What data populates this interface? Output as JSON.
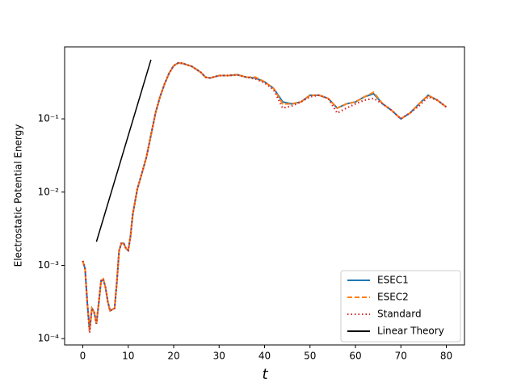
{
  "chart_data": {
    "type": "line",
    "xlabel": "t",
    "ylabel": "Electrostatic Potential Energy",
    "xlim": [
      -4,
      84
    ],
    "xticks": [
      0,
      10,
      20,
      30,
      40,
      50,
      60,
      70,
      80
    ],
    "ylim": [
      8.2e-05,
      0.96
    ],
    "log_y": true,
    "yticks": [
      {
        "value": 0.0001,
        "label": "10⁻⁴"
      },
      {
        "value": 0.001,
        "label": "10⁻³"
      },
      {
        "value": 0.01,
        "label": "10⁻²"
      },
      {
        "value": 0.1,
        "label": "10⁻¹"
      }
    ],
    "legend": "lower right",
    "series": [
      {
        "name": "ESEC1",
        "color": "#1f77b4",
        "style": "solid",
        "x": [
          0,
          0.5,
          1,
          1.5,
          2,
          2.5,
          3,
          3.5,
          4,
          4.5,
          5,
          5.5,
          6,
          7,
          7.5,
          8,
          8.5,
          9,
          9.5,
          10,
          10.5,
          11,
          12,
          13,
          14,
          15,
          16,
          17,
          18,
          19,
          20,
          21,
          22,
          24,
          26,
          27,
          28,
          30,
          32,
          34,
          36,
          38,
          40,
          42,
          44,
          46,
          48,
          50,
          52,
          54,
          56,
          58,
          60,
          62,
          64,
          66,
          68,
          70,
          72,
          74,
          76,
          78,
          80
        ],
        "values": [
          0.00115,
          0.0009,
          0.0003,
          0.00013,
          0.00026,
          0.00023,
          0.00016,
          0.0003,
          0.0006,
          0.00065,
          0.0005,
          0.00032,
          0.00024,
          0.00026,
          0.0006,
          0.0016,
          0.002,
          0.002,
          0.0017,
          0.0016,
          0.0025,
          0.005,
          0.011,
          0.018,
          0.03,
          0.06,
          0.12,
          0.2,
          0.3,
          0.42,
          0.53,
          0.58,
          0.57,
          0.52,
          0.43,
          0.37,
          0.36,
          0.39,
          0.39,
          0.4,
          0.37,
          0.36,
          0.32,
          0.26,
          0.17,
          0.16,
          0.17,
          0.21,
          0.21,
          0.19,
          0.14,
          0.16,
          0.17,
          0.2,
          0.22,
          0.16,
          0.13,
          0.1,
          0.12,
          0.16,
          0.21,
          0.18,
          0.145
        ]
      },
      {
        "name": "ESEC2",
        "color": "#ff7f0e",
        "style": "dashed",
        "x": [
          0,
          0.5,
          1,
          1.5,
          2,
          2.5,
          3,
          3.5,
          4,
          4.5,
          5,
          5.5,
          6,
          7,
          7.5,
          8,
          8.5,
          9,
          9.5,
          10,
          10.5,
          11,
          12,
          13,
          14,
          15,
          16,
          17,
          18,
          19,
          20,
          21,
          22,
          24,
          26,
          27,
          28,
          30,
          32,
          34,
          36,
          38,
          40,
          42,
          44,
          46,
          48,
          50,
          52,
          54,
          56,
          58,
          60,
          62,
          64,
          66,
          68,
          70,
          72,
          74,
          76,
          78,
          80
        ],
        "values": [
          0.00115,
          0.0009,
          0.0003,
          0.00013,
          0.00026,
          0.00023,
          0.00016,
          0.0003,
          0.0006,
          0.00065,
          0.0005,
          0.00032,
          0.00024,
          0.00026,
          0.0006,
          0.0016,
          0.002,
          0.002,
          0.0017,
          0.0016,
          0.0025,
          0.005,
          0.011,
          0.018,
          0.03,
          0.06,
          0.12,
          0.2,
          0.3,
          0.42,
          0.53,
          0.58,
          0.57,
          0.52,
          0.43,
          0.37,
          0.36,
          0.39,
          0.39,
          0.4,
          0.37,
          0.37,
          0.32,
          0.26,
          0.16,
          0.16,
          0.17,
          0.21,
          0.21,
          0.19,
          0.14,
          0.16,
          0.17,
          0.2,
          0.23,
          0.16,
          0.13,
          0.1,
          0.12,
          0.16,
          0.21,
          0.18,
          0.145
        ]
      },
      {
        "name": "Standard",
        "color": "#d62728",
        "style": "dotted",
        "x": [
          0,
          0.5,
          1,
          1.5,
          2,
          2.5,
          3,
          3.5,
          4,
          4.5,
          5,
          5.5,
          6,
          7,
          7.5,
          8,
          8.5,
          9,
          9.5,
          10,
          10.5,
          11,
          12,
          13,
          14,
          15,
          16,
          17,
          18,
          19,
          20,
          21,
          22,
          24,
          26,
          27,
          28,
          30,
          32,
          34,
          36,
          38,
          40,
          42,
          44,
          46,
          48,
          50,
          52,
          54,
          56,
          58,
          60,
          62,
          64,
          66,
          68,
          70,
          72,
          74,
          76,
          78,
          80
        ],
        "values": [
          0.00115,
          0.0009,
          0.0003,
          0.00012,
          0.00026,
          0.00023,
          0.00016,
          0.0003,
          0.00062,
          0.00065,
          0.0005,
          0.00032,
          0.00024,
          0.00026,
          0.0006,
          0.0016,
          0.002,
          0.002,
          0.0017,
          0.0016,
          0.0025,
          0.005,
          0.011,
          0.018,
          0.03,
          0.06,
          0.12,
          0.2,
          0.3,
          0.42,
          0.53,
          0.58,
          0.57,
          0.52,
          0.43,
          0.37,
          0.36,
          0.39,
          0.39,
          0.4,
          0.37,
          0.35,
          0.31,
          0.25,
          0.14,
          0.15,
          0.17,
          0.2,
          0.21,
          0.19,
          0.12,
          0.14,
          0.16,
          0.18,
          0.19,
          0.16,
          0.13,
          0.1,
          0.12,
          0.15,
          0.2,
          0.18,
          0.145
        ]
      },
      {
        "name": "Linear Theory",
        "color": "#000000",
        "style": "solid",
        "x": [
          3,
          15
        ],
        "values": [
          0.0021,
          0.64
        ]
      }
    ]
  }
}
